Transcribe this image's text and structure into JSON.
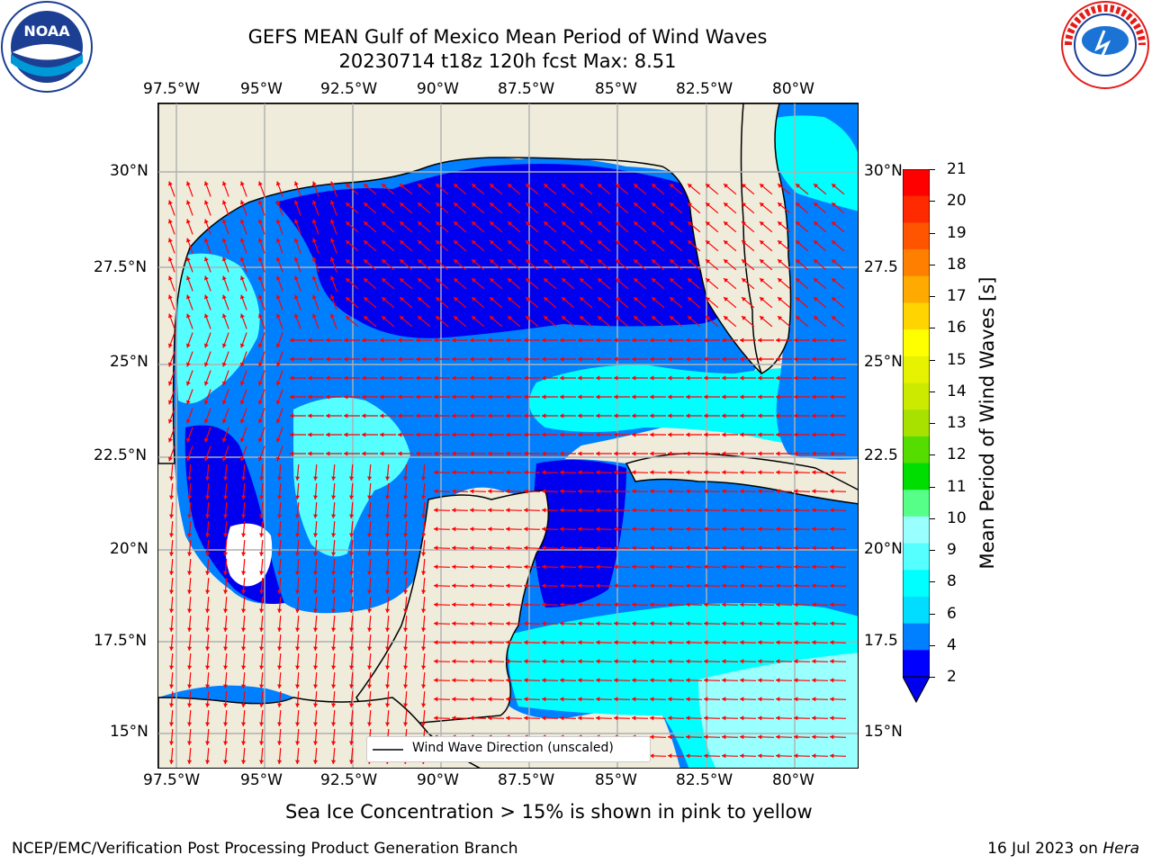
{
  "header": {
    "title_line1": "GEFS MEAN Gulf of Mexico Mean Period of Wind Waves",
    "title_line2": "20230714 t18z 120h fcst   Max: 8.51"
  },
  "logos": {
    "left_text": "NOAA",
    "right_text": "NATIONAL WEATHER SERVICE"
  },
  "map": {
    "lon_labels": [
      "97.5°W",
      "95°W",
      "92.5°W",
      "90°W",
      "87.5°W",
      "85°W",
      "82.5°W",
      "80°W"
    ],
    "lat_labels": [
      "30°N",
      "27.5°N",
      "25°N",
      "22.5°N",
      "20°N",
      "17.5°N",
      "15°N"
    ],
    "lat_labels_right": [
      "30°N",
      "27.5",
      "25°N",
      "22.5",
      "20°N",
      "17.5",
      "15°N"
    ],
    "legend_label": "Wind Wave Direction (unscaled)",
    "colors": {
      "land": "#efecdc",
      "arrow": "#ff0000",
      "grid": "#b0b0b0"
    }
  },
  "colorbar": {
    "label": "Mean Period of Wind Waves [s]",
    "ticks": [
      "21",
      "20",
      "19",
      "18",
      "17",
      "16",
      "15",
      "14",
      "13",
      "12",
      "11",
      "10",
      "9",
      "8",
      "6",
      "4",
      "2"
    ],
    "colors": [
      "#ff0000",
      "#ff2a00",
      "#ff5500",
      "#ff8000",
      "#ffaa00",
      "#ffd400",
      "#ffff00",
      "#e6f200",
      "#ccea00",
      "#a8e000",
      "#55dd00",
      "#00dd00",
      "#55ff88",
      "#99ffff",
      "#55ffff",
      "#00ffff",
      "#00ddff",
      "#0080ff",
      "#0000ff"
    ]
  },
  "caption": "Sea Ice Concentration > 15% is shown in pink to yellow",
  "footer": {
    "left": "NCEP/EMC/Verification Post Processing Product Generation Branch",
    "right_prefix": "16 Jul 2023 on ",
    "right_host": "Hera"
  }
}
